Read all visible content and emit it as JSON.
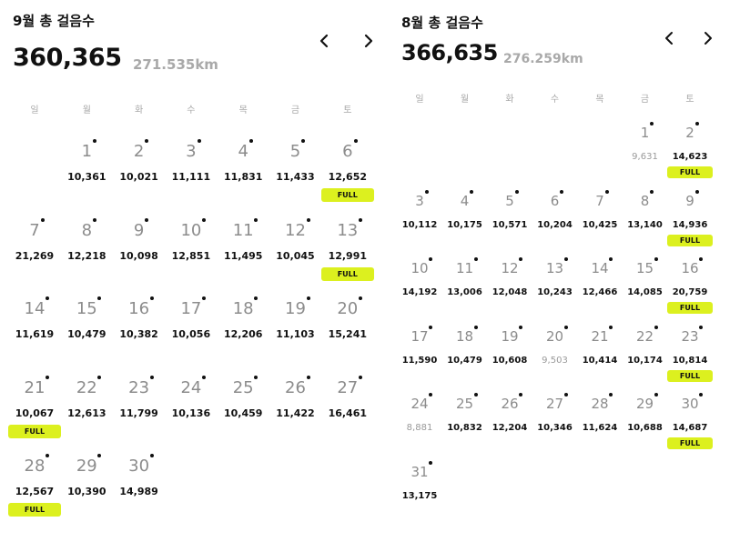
{
  "left": {
    "title": "9월 총 걸음수",
    "total": "360,365",
    "distance": "271.535km",
    "prev_icon": "chevron-left-icon",
    "next_icon": "chevron-right-icon",
    "weekdays": [
      "일",
      "월",
      "화",
      "수",
      "목",
      "금",
      "토"
    ],
    "start_col": 1,
    "days": [
      {
        "d": "1",
        "steps": "10,361",
        "full": false,
        "low": false
      },
      {
        "d": "2",
        "steps": "10,021",
        "full": false,
        "low": false
      },
      {
        "d": "3",
        "steps": "11,111",
        "full": false,
        "low": false
      },
      {
        "d": "4",
        "steps": "11,831",
        "full": false,
        "low": false
      },
      {
        "d": "5",
        "steps": "11,433",
        "full": false,
        "low": false
      },
      {
        "d": "6",
        "steps": "12,652",
        "full": true,
        "low": false
      },
      {
        "d": "7",
        "steps": "21,269",
        "full": false,
        "low": false
      },
      {
        "d": "8",
        "steps": "12,218",
        "full": false,
        "low": false
      },
      {
        "d": "9",
        "steps": "10,098",
        "full": false,
        "low": false
      },
      {
        "d": "10",
        "steps": "12,851",
        "full": false,
        "low": false
      },
      {
        "d": "11",
        "steps": "11,495",
        "full": false,
        "low": false
      },
      {
        "d": "12",
        "steps": "10,045",
        "full": false,
        "low": false
      },
      {
        "d": "13",
        "steps": "12,991",
        "full": true,
        "low": false
      },
      {
        "d": "14",
        "steps": "11,619",
        "full": false,
        "low": false
      },
      {
        "d": "15",
        "steps": "10,479",
        "full": false,
        "low": false
      },
      {
        "d": "16",
        "steps": "10,382",
        "full": false,
        "low": false
      },
      {
        "d": "17",
        "steps": "10,056",
        "full": false,
        "low": false
      },
      {
        "d": "18",
        "steps": "12,206",
        "full": false,
        "low": false
      },
      {
        "d": "19",
        "steps": "11,103",
        "full": false,
        "low": false
      },
      {
        "d": "20",
        "steps": "15,241",
        "full": false,
        "low": false
      },
      {
        "d": "21",
        "steps": "10,067",
        "full": true,
        "low": false
      },
      {
        "d": "22",
        "steps": "12,613",
        "full": false,
        "low": false
      },
      {
        "d": "23",
        "steps": "11,799",
        "full": false,
        "low": false
      },
      {
        "d": "24",
        "steps": "10,136",
        "full": false,
        "low": false
      },
      {
        "d": "25",
        "steps": "10,459",
        "full": false,
        "low": false
      },
      {
        "d": "26",
        "steps": "11,422",
        "full": false,
        "low": false
      },
      {
        "d": "27",
        "steps": "16,461",
        "full": false,
        "low": false
      },
      {
        "d": "28",
        "steps": "12,567",
        "full": true,
        "low": false
      },
      {
        "d": "29",
        "steps": "10,390",
        "full": false,
        "low": false
      },
      {
        "d": "30",
        "steps": "14,989",
        "full": false,
        "low": false
      }
    ]
  },
  "right": {
    "title": "8월 총 걸음수",
    "total": "366,635",
    "distance": "276.259km",
    "prev_icon": "chevron-left-icon",
    "next_icon": "chevron-right-icon",
    "weekdays": [
      "일",
      "월",
      "화",
      "수",
      "목",
      "금",
      "토"
    ],
    "start_col": 5,
    "days": [
      {
        "d": "1",
        "steps": "9,631",
        "full": false,
        "low": true
      },
      {
        "d": "2",
        "steps": "14,623",
        "full": true,
        "low": false
      },
      {
        "d": "3",
        "steps": "10,112",
        "full": false,
        "low": false
      },
      {
        "d": "4",
        "steps": "10,175",
        "full": false,
        "low": false
      },
      {
        "d": "5",
        "steps": "10,571",
        "full": false,
        "low": false
      },
      {
        "d": "6",
        "steps": "10,204",
        "full": false,
        "low": false
      },
      {
        "d": "7",
        "steps": "10,425",
        "full": false,
        "low": false
      },
      {
        "d": "8",
        "steps": "13,140",
        "full": false,
        "low": false
      },
      {
        "d": "9",
        "steps": "14,936",
        "full": true,
        "low": false
      },
      {
        "d": "10",
        "steps": "14,192",
        "full": false,
        "low": false
      },
      {
        "d": "11",
        "steps": "13,006",
        "full": false,
        "low": false
      },
      {
        "d": "12",
        "steps": "12,048",
        "full": false,
        "low": false
      },
      {
        "d": "13",
        "steps": "10,243",
        "full": false,
        "low": false
      },
      {
        "d": "14",
        "steps": "12,466",
        "full": false,
        "low": false
      },
      {
        "d": "15",
        "steps": "14,085",
        "full": false,
        "low": false
      },
      {
        "d": "16",
        "steps": "20,759",
        "full": true,
        "low": false
      },
      {
        "d": "17",
        "steps": "11,590",
        "full": false,
        "low": false
      },
      {
        "d": "18",
        "steps": "10,479",
        "full": false,
        "low": false
      },
      {
        "d": "19",
        "steps": "10,608",
        "full": false,
        "low": false
      },
      {
        "d": "20",
        "steps": "9,503",
        "full": false,
        "low": true
      },
      {
        "d": "21",
        "steps": "10,414",
        "full": false,
        "low": false
      },
      {
        "d": "22",
        "steps": "10,174",
        "full": false,
        "low": false
      },
      {
        "d": "23",
        "steps": "10,814",
        "full": true,
        "low": false
      },
      {
        "d": "24",
        "steps": "8,881",
        "full": false,
        "low": true
      },
      {
        "d": "25",
        "steps": "10,832",
        "full": false,
        "low": false
      },
      {
        "d": "26",
        "steps": "12,204",
        "full": false,
        "low": false
      },
      {
        "d": "27",
        "steps": "10,346",
        "full": false,
        "low": false
      },
      {
        "d": "28",
        "steps": "11,624",
        "full": false,
        "low": false
      },
      {
        "d": "29",
        "steps": "10,688",
        "full": false,
        "low": false
      },
      {
        "d": "30",
        "steps": "14,687",
        "full": true,
        "low": false
      },
      {
        "d": "31",
        "steps": "13,175",
        "full": false,
        "low": false
      }
    ]
  },
  "full_label": "FULL",
  "colors": {
    "accent": "#dcf01f",
    "muted": "#8c8c8c",
    "text": "#111111"
  }
}
